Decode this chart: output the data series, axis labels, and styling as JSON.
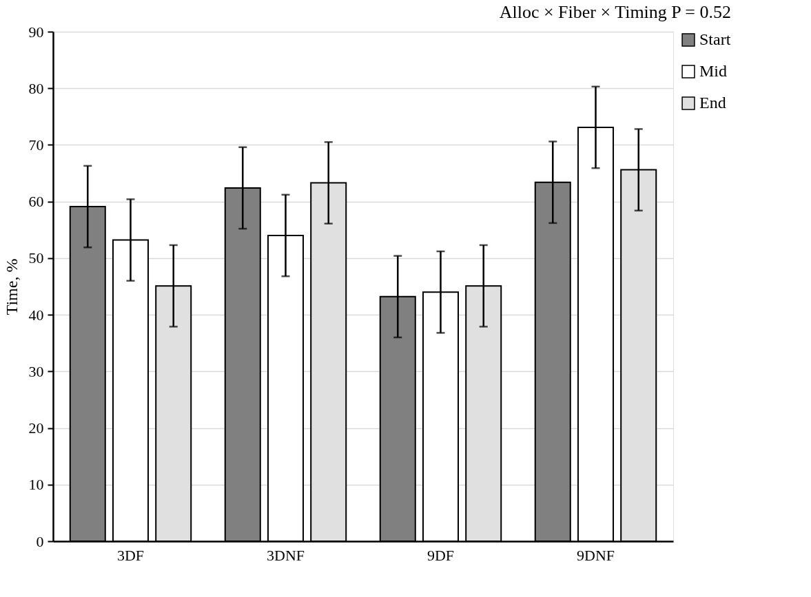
{
  "chart_data": {
    "type": "bar",
    "title": "Alloc × Fiber × Timing P = 0.52",
    "ylabel": "Time,  %",
    "categories": [
      "3DF",
      "3DNF",
      "9DF",
      "9DNF"
    ],
    "series": [
      {
        "name": "Start",
        "color": "#808080",
        "values": [
          59.1,
          62.4,
          43.2,
          63.4
        ],
        "errors": [
          7.2,
          7.2,
          7.2,
          7.2
        ]
      },
      {
        "name": "Mid",
        "color": "#ffffff",
        "values": [
          53.2,
          54.0,
          44.0,
          73.1
        ],
        "errors": [
          7.2,
          7.2,
          7.2,
          7.2
        ]
      },
      {
        "name": "End",
        "color": "#e0e0e0",
        "values": [
          45.1,
          63.3,
          45.1,
          65.6
        ],
        "errors": [
          7.2,
          7.2,
          7.2,
          7.2
        ]
      }
    ],
    "ylim": [
      0,
      90
    ],
    "yticks": [
      0,
      10,
      20,
      30,
      40,
      50,
      60,
      70,
      80,
      90
    ],
    "grid": "y",
    "legend": "right"
  }
}
